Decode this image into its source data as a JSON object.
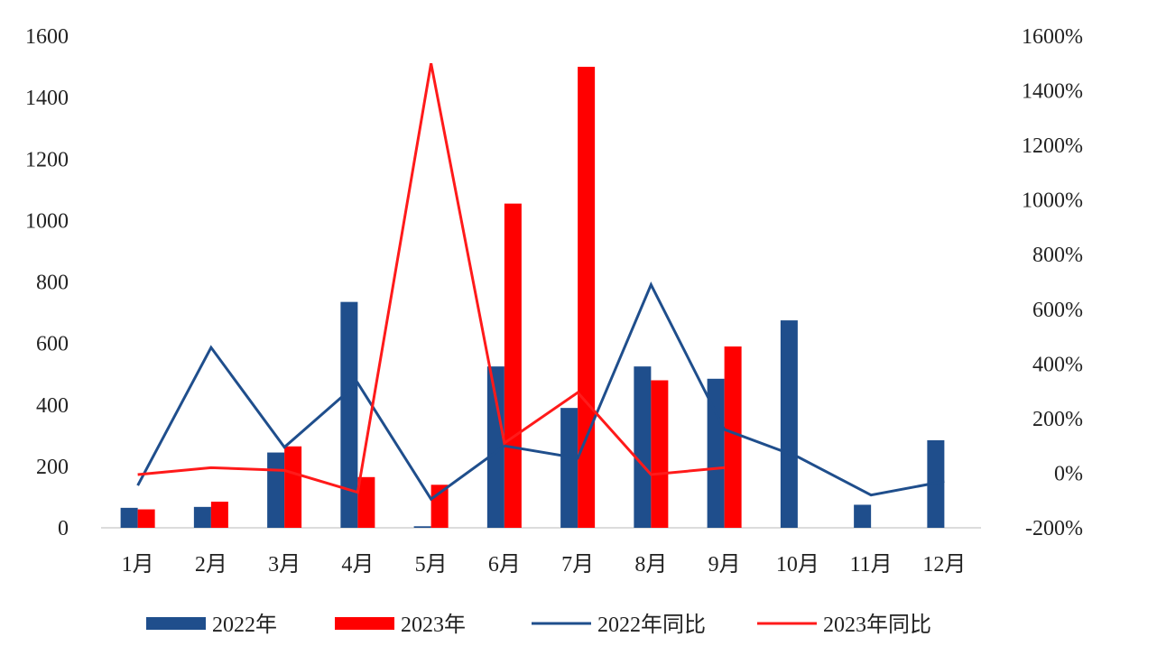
{
  "chart_data": {
    "type": "bar",
    "categories": [
      "1月",
      "2月",
      "3月",
      "4月",
      "5月",
      "6月",
      "7月",
      "8月",
      "9月",
      "10月",
      "11月",
      "12月"
    ],
    "series": [
      {
        "name": "2022年",
        "kind": "bar",
        "axis": "left",
        "color": "#1f4e8c",
        "values": [
          65,
          68,
          245,
          735,
          5,
          525,
          390,
          525,
          485,
          675,
          75,
          285
        ]
      },
      {
        "name": "2023年",
        "kind": "bar",
        "axis": "left",
        "color": "#ff0000",
        "values": [
          60,
          85,
          265,
          165,
          140,
          1055,
          1500,
          480,
          590,
          null,
          null,
          null
        ]
      },
      {
        "name": "2022年同比",
        "kind": "line",
        "axis": "right",
        "color": "#1f4e8c",
        "values": [
          -45,
          460,
          95,
          330,
          -95,
          100,
          55,
          690,
          160,
          60,
          -80,
          -30
        ]
      },
      {
        "name": "2023年同比",
        "kind": "line",
        "axis": "right",
        "color": "#ff1a1a",
        "values": [
          -5,
          20,
          10,
          -70,
          1500,
          110,
          295,
          -5,
          20,
          null,
          null,
          null
        ]
      }
    ],
    "y_left": {
      "min": 0,
      "max": 1600,
      "ticks": [
        "0",
        "200",
        "400",
        "600",
        "800",
        "1000",
        "1200",
        "1400",
        "1600"
      ]
    },
    "y_right": {
      "min": -200,
      "max": 1600,
      "ticks": [
        "-200%",
        "0%",
        "200%",
        "400%",
        "600%",
        "800%",
        "1000%",
        "1200%",
        "1400%",
        "1600%"
      ]
    },
    "legend_position": "bottom",
    "grid": false
  }
}
